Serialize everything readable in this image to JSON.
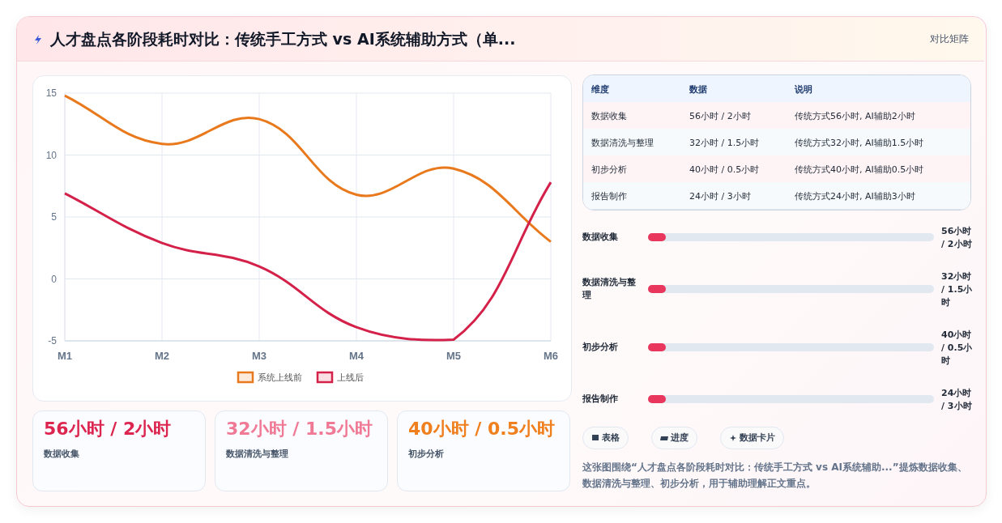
{
  "chart_data": [
    {
      "type": "line",
      "title": "人才盘点各阶段耗时对比：传统手工方式 vs AI系统辅助方式（单...",
      "annotations": [
        "对比矩阵"
      ],
      "categories": [
        "M1",
        "M2",
        "M3",
        "M4",
        "M5",
        "M6"
      ],
      "series": [
        {
          "name": "系统上线前",
          "color": "#e8791c",
          "values": [
            14.8,
            10.9,
            12.9,
            6.8,
            8.9,
            3.0
          ]
        },
        {
          "name": "上线后",
          "color": "#d4214a",
          "values": [
            6.9,
            2.9,
            1,
            -3.9,
            -4.9,
            7.8
          ]
        }
      ],
      "ylim": [
        -5,
        15
      ],
      "yticks": [
        -5,
        0,
        5,
        10,
        15
      ],
      "grid": true,
      "legend": "bottom",
      "marker": "none"
    },
    {
      "type": "other",
      "categories": [
        "维度",
        "数据",
        "说明"
      ],
      "y_categories": [
        "数据收集",
        "数据清洗与整理",
        "初步分析",
        "报告制作"
      ],
      "cell_labels": [
        [
          "56小时 / 2小时",
          "传统方式56小时, AI辅助2小时"
        ],
        [
          "32小时 / 1.5小时",
          "传统方式32小时, AI辅助1.5小时"
        ],
        [
          "40小时 / 0.5小时",
          "传统方式40小时, AI辅助0.5小时"
        ],
        [
          "24小时 / 3小时",
          "传统方式24小时, AI辅助3小时"
        ]
      ]
    },
    {
      "type": "other",
      "categories": [
        "数据收集",
        "数据清洗与整理",
        "初步分析",
        "报告制作"
      ],
      "value_labels": [
        "56小时 / 2小时",
        "32小时 / 1.5小时",
        "40小时 / 0.5小时",
        "24小时 / 3小时"
      ]
    },
    {
      "type": "other",
      "categories": [
        "数据收集",
        "数据清洗与整理",
        "初步分析"
      ],
      "value_labels": [
        "56小时 / 2小时",
        "32小时 / 1.5小时",
        "40小时 / 0.5小时"
      ]
    },
    {
      "type": "other",
      "annotations": [
        "表格",
        "进度",
        "数据卡片",
        "这张图围绕“人才盘点各阶段耗时对比：传统手工方式 vs AI系统辅助...”提炼数据收集、数据清洗与整理、初步分析，用于辅助理解正文重点。"
      ]
    }
  ]
}
